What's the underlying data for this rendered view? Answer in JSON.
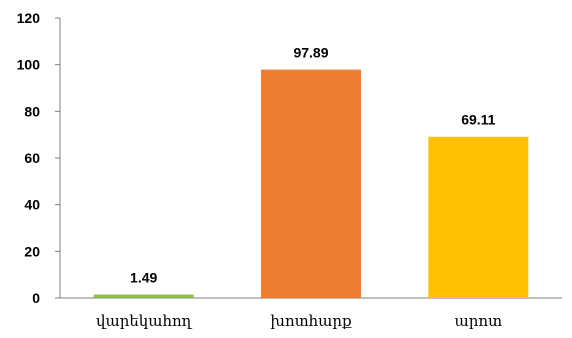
{
  "chart_data": {
    "type": "bar",
    "title": "",
    "xlabel": "",
    "ylabel": "",
    "categories": [
      "վարեկահող",
      "խոտհարք",
      "արոտ"
    ],
    "values": [
      1.49,
      97.89,
      69.11
    ],
    "data_labels": [
      "1.49",
      "97.89",
      "69.11"
    ],
    "colors": [
      "#8cc152",
      "#ed7d31",
      "#ffc000"
    ],
    "ylim": [
      0,
      120
    ],
    "yticks": [
      "0",
      "20",
      "40",
      "60",
      "80",
      "100",
      "120"
    ],
    "grid": false,
    "legend": "none"
  }
}
